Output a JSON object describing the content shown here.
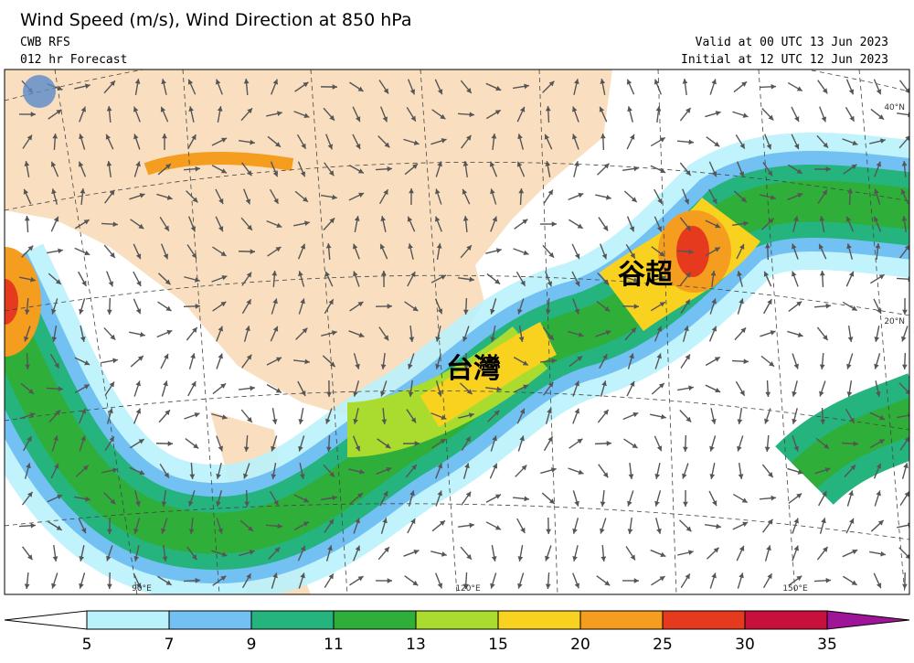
{
  "header": {
    "title": "Wind Speed (m/s), Wind Direction at 850 hPa",
    "model": "CWB RFS",
    "forecast": "012 hr Forecast",
    "valid": "Valid at 00 UTC 13 Jun 2023",
    "initial": "Initial at 12 UTC 12 Jun 2023"
  },
  "map": {
    "labels": [
      "台灣",
      "谷超"
    ],
    "lon_labels": [
      "90°E",
      "120°E",
      "150°E"
    ],
    "lat_labels": [
      "40°N",
      "20°N"
    ]
  },
  "colorbar": {
    "levels": [
      5,
      7,
      9,
      11,
      13,
      15,
      20,
      25,
      30,
      35
    ],
    "colors": [
      "#ffffff",
      "#b9f2fb",
      "#73c0f2",
      "#26b47e",
      "#2fae3a",
      "#a9dc2e",
      "#f9d220",
      "#f59d1f",
      "#e53a1d",
      "#c8103c",
      "#9f1597"
    ]
  }
}
